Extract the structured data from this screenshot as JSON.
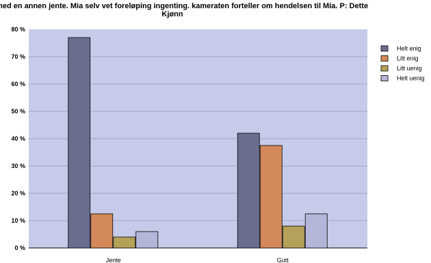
{
  "chart_data": {
    "type": "bar",
    "title": [
      "kline med en annen jente. Mia selv vet foreløping ingenting. kameraten forteller om hendelsen til Mia. P: Dette",
      "Kjønn"
    ],
    "xlabel": "",
    "ylabel": "",
    "categories": [
      "Jente",
      "Gutt"
    ],
    "series": [
      {
        "name": "Helt enig",
        "color": "#6b6d8f",
        "values": [
          77,
          42
        ]
      },
      {
        "name": "Litt enig",
        "color": "#d4895a",
        "values": [
          12.5,
          37.5
        ]
      },
      {
        "name": "Litt uenig",
        "color": "#b5a25a",
        "values": [
          4,
          8
        ]
      },
      {
        "name": "Helt uenig",
        "color": "#b3b5d9",
        "values": [
          6,
          12.5
        ]
      }
    ],
    "ylim": [
      0,
      80
    ],
    "yticks": [
      "0 %",
      "10 %",
      "20 %",
      "30 %",
      "40 %",
      "50 %",
      "60 %",
      "70 %",
      "80 %"
    ],
    "plot_background": "#c5cbe8",
    "grid": true,
    "legend": "right"
  }
}
